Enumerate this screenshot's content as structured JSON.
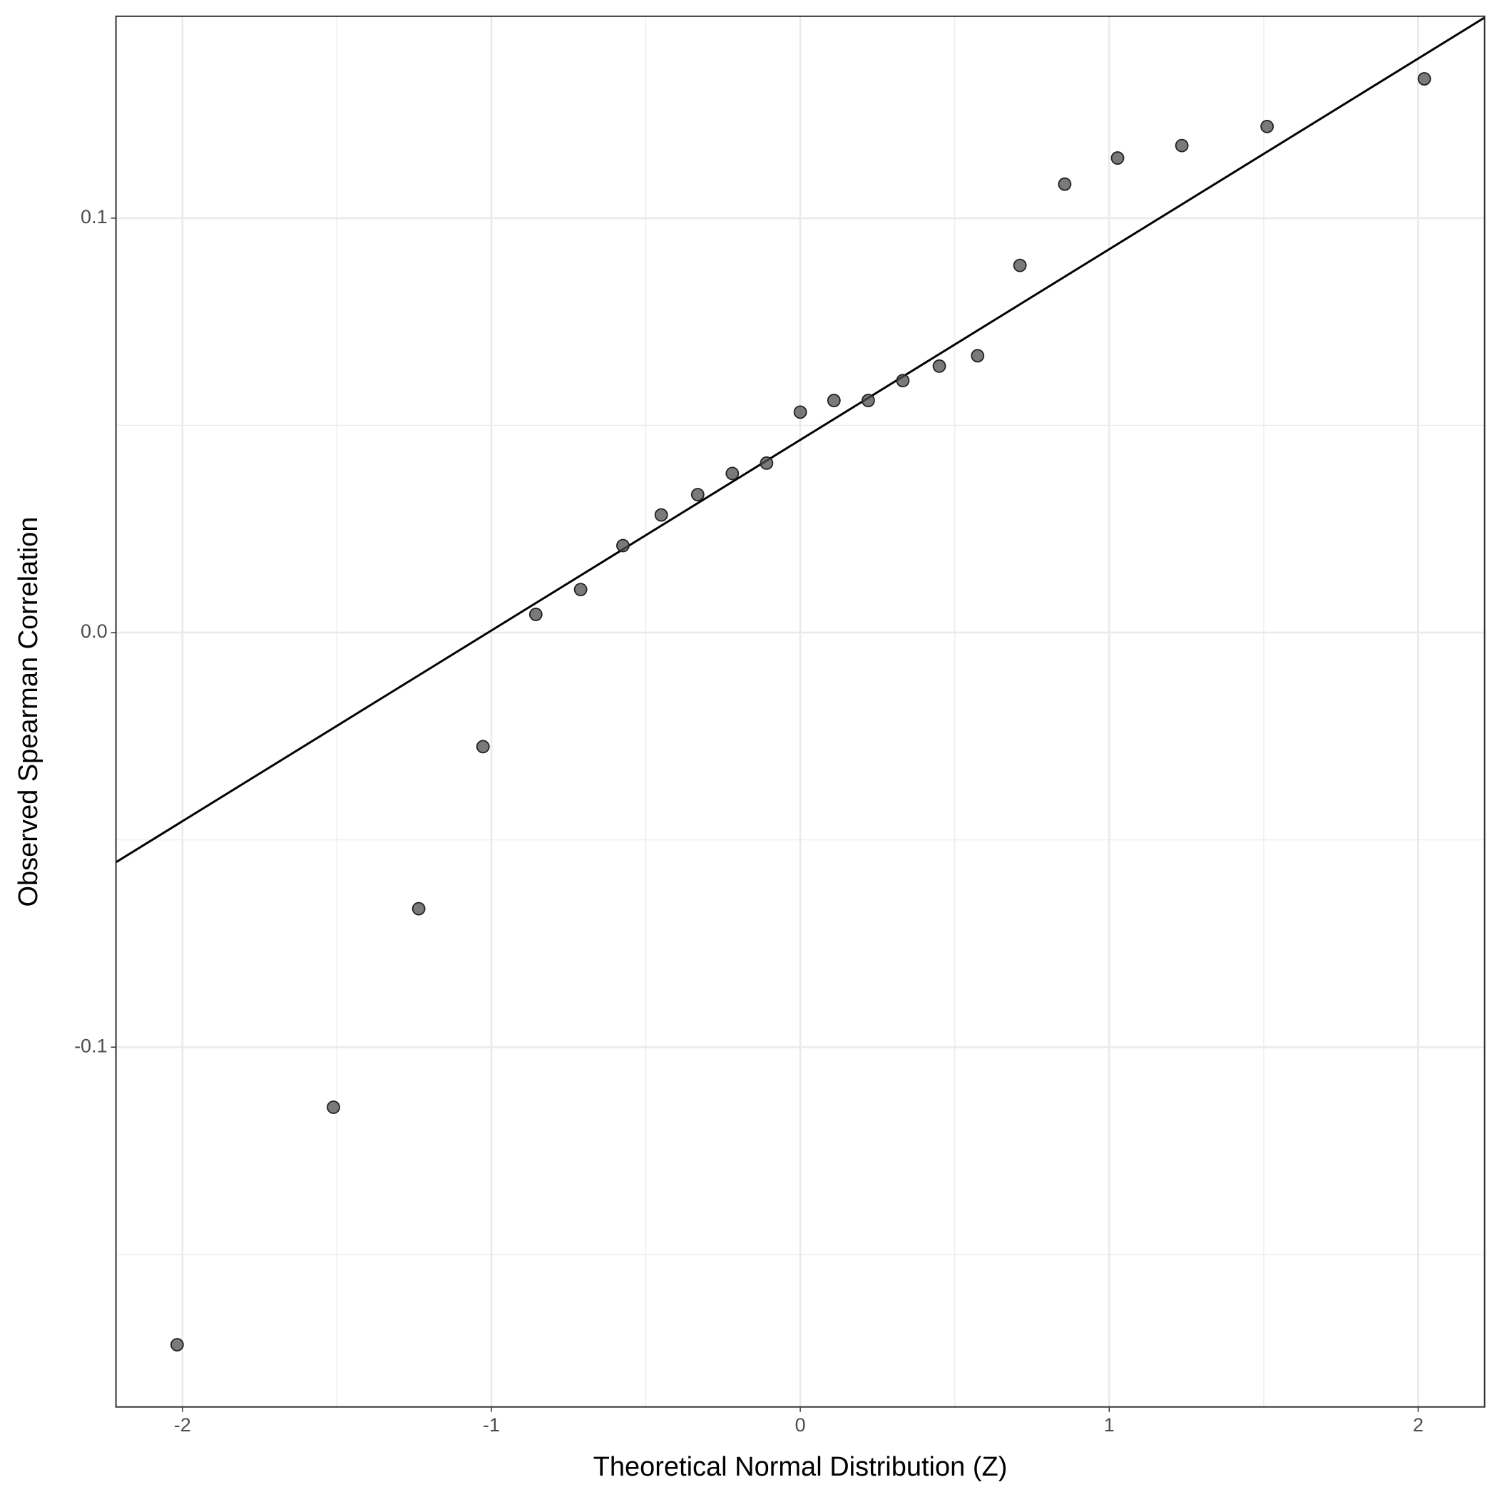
{
  "chart_data": {
    "type": "scatter",
    "x_label": "Theoretical Normal Distribution (Z)",
    "y_label": "Observed Spearman Correlation",
    "x": [
      -2.017,
      -1.511,
      -1.235,
      -1.027,
      -0.856,
      -0.711,
      -0.574,
      -0.45,
      -0.332,
      -0.22,
      -0.109,
      0,
      0.109,
      0.22,
      0.332,
      0.45,
      0.574,
      0.711,
      0.856,
      1.027,
      1.235,
      1.511,
      2.02
    ],
    "values": [
      -0.1718,
      -0.1145,
      -0.0666,
      -0.0275,
      0.0044,
      0.0104,
      0.021,
      0.0284,
      0.0333,
      0.0384,
      0.0409,
      0.0532,
      0.056,
      0.056,
      0.0608,
      0.0643,
      0.0668,
      0.0886,
      0.1082,
      0.1145,
      0.1175,
      0.1221,
      0.1336
    ],
    "color": "#4d4d4d",
    "reference_line": {
      "intercept": 0.0465,
      "slope": 0.046,
      "color": "#000000"
    },
    "xlim": [
      -2.215,
      2.215
    ],
    "ylim": [
      -0.1868,
      0.1487
    ],
    "xticks": [
      -2,
      -1,
      0,
      1,
      2
    ],
    "yticks": [
      -0.1,
      {
        "value": 0,
        "label": "0.0"
      },
      0.1
    ],
    "xminor": [
      -1.5,
      -0.5,
      0.5,
      1.5
    ],
    "yminor": [
      -0.15,
      -0.05,
      0.05
    ],
    "grid": true
  }
}
